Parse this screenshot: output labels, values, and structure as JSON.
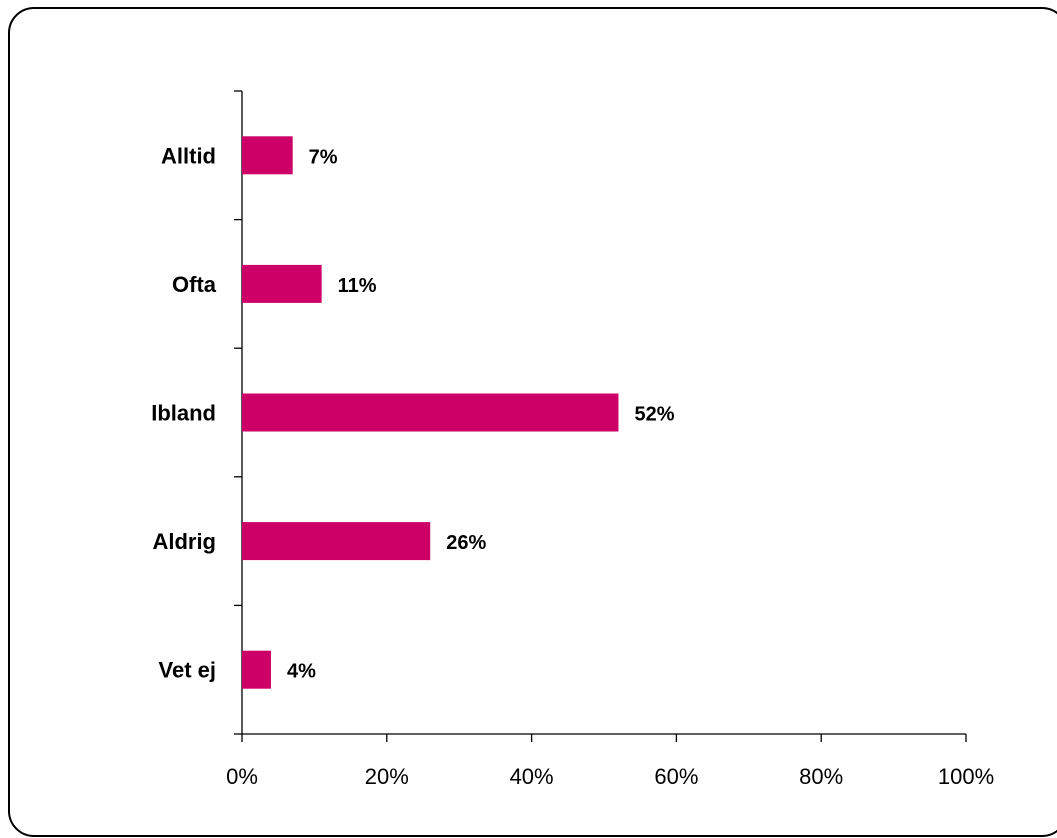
{
  "chart_data": {
    "type": "bar",
    "orientation": "horizontal",
    "categories": [
      "Alltid",
      "Ofta",
      "Ibland",
      "Aldrig",
      "Vet ej"
    ],
    "values": [
      7,
      11,
      52,
      26,
      4
    ],
    "data_labels": [
      "7%",
      "11%",
      "52%",
      "26%",
      "4%"
    ],
    "xlim": [
      0,
      100
    ],
    "x_ticks": [
      0,
      20,
      40,
      60,
      80,
      100
    ],
    "x_tick_labels": [
      "0%",
      "20%",
      "40%",
      "60%",
      "80%",
      "100%"
    ],
    "bar_color": "#CC0066",
    "grid": false,
    "legend": "none"
  }
}
